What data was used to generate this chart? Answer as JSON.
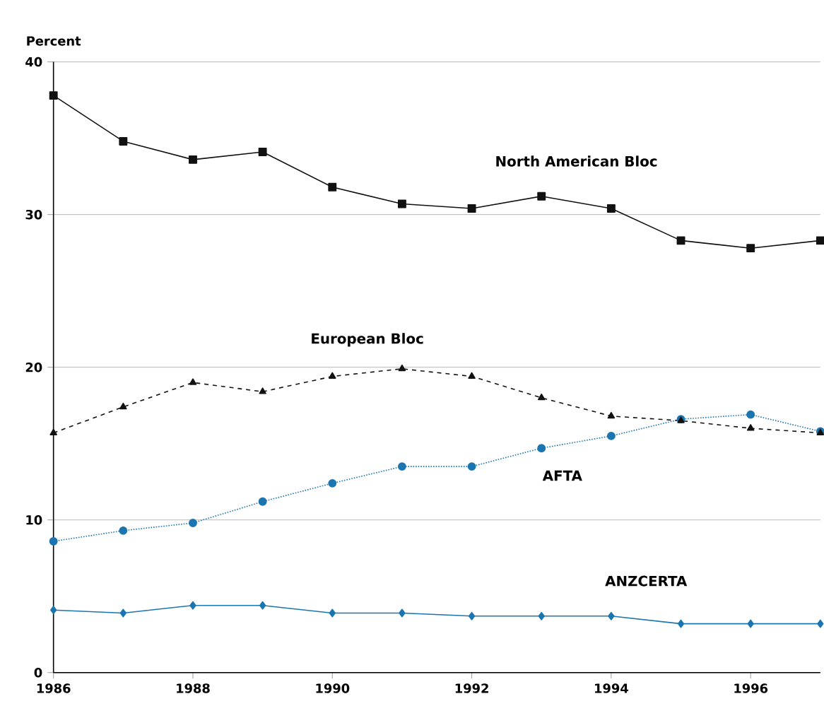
{
  "chart_data": {
    "type": "line",
    "ylabel": "Percent",
    "x": [
      1986,
      1987,
      1988,
      1989,
      1990,
      1991,
      1992,
      1993,
      1994,
      1995,
      1996,
      1997
    ],
    "xlim": [
      1986,
      1997
    ],
    "xticks": [
      1986,
      1988,
      1990,
      1992,
      1994,
      1996
    ],
    "ylim": [
      0,
      40
    ],
    "yticks": [
      0,
      10,
      20,
      30,
      40
    ],
    "grid": "y",
    "legend": false,
    "series": [
      {
        "name": "North American Bloc",
        "color": "#111111",
        "marker": "square",
        "line_style": "solid",
        "values": [
          37.8,
          34.8,
          33.6,
          34.1,
          31.8,
          30.7,
          30.4,
          31.2,
          30.4,
          28.3,
          27.8,
          28.3
        ]
      },
      {
        "name": "European Bloc",
        "color": "#111111",
        "marker": "triangle",
        "line_style": "dashed",
        "values": [
          15.7,
          17.4,
          19.0,
          18.4,
          19.4,
          19.9,
          19.4,
          18.0,
          16.8,
          16.5,
          16.0,
          15.7
        ]
      },
      {
        "name": "AFTA",
        "color": "#1a75b0",
        "marker": "circle",
        "line_style": "dotted",
        "values": [
          8.6,
          9.3,
          9.8,
          11.2,
          12.4,
          13.5,
          13.5,
          14.7,
          15.5,
          16.6,
          16.9,
          15.8
        ]
      },
      {
        "name": "ANZCERTA",
        "color": "#1a75b0",
        "marker": "diamond",
        "line_style": "solid",
        "values": [
          4.1,
          3.9,
          4.4,
          4.4,
          3.9,
          3.9,
          3.7,
          3.7,
          3.7,
          3.2,
          3.2,
          3.2
        ]
      }
    ]
  }
}
